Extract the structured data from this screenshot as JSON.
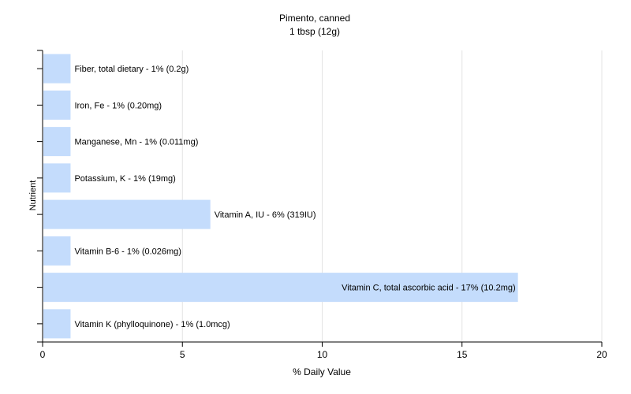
{
  "chart_data": {
    "type": "bar",
    "orientation": "horizontal",
    "title": "Pimento, canned",
    "subtitle": "1 tbsp (12g)",
    "xlabel": "% Daily Value",
    "ylabel": "Nutrient",
    "xlim": [
      0,
      20
    ],
    "xticks": [
      0,
      5,
      10,
      15,
      20
    ],
    "grid": "vertical",
    "bar_color": "#c4dcfc",
    "categories": [
      "Fiber, total dietary",
      "Iron, Fe",
      "Manganese, Mn",
      "Potassium, K",
      "Vitamin A, IU",
      "Vitamin B-6",
      "Vitamin C, total ascorbic acid",
      "Vitamin K (phylloquinone)"
    ],
    "values": [
      1,
      1,
      1,
      1,
      6,
      1,
      17,
      1
    ],
    "bar_labels": [
      "Fiber, total dietary - 1% (0.2g)",
      "Iron, Fe - 1% (0.20mg)",
      "Manganese, Mn - 1% (0.011mg)",
      "Potassium, K - 1% (19mg)",
      "Vitamin A, IU - 6% (319IU)",
      "Vitamin B-6 - 1% (0.026mg)",
      "Vitamin C, total ascorbic acid - 17% (10.2mg)",
      "Vitamin K (phylloquinone) - 1% (1.0mcg)"
    ]
  }
}
